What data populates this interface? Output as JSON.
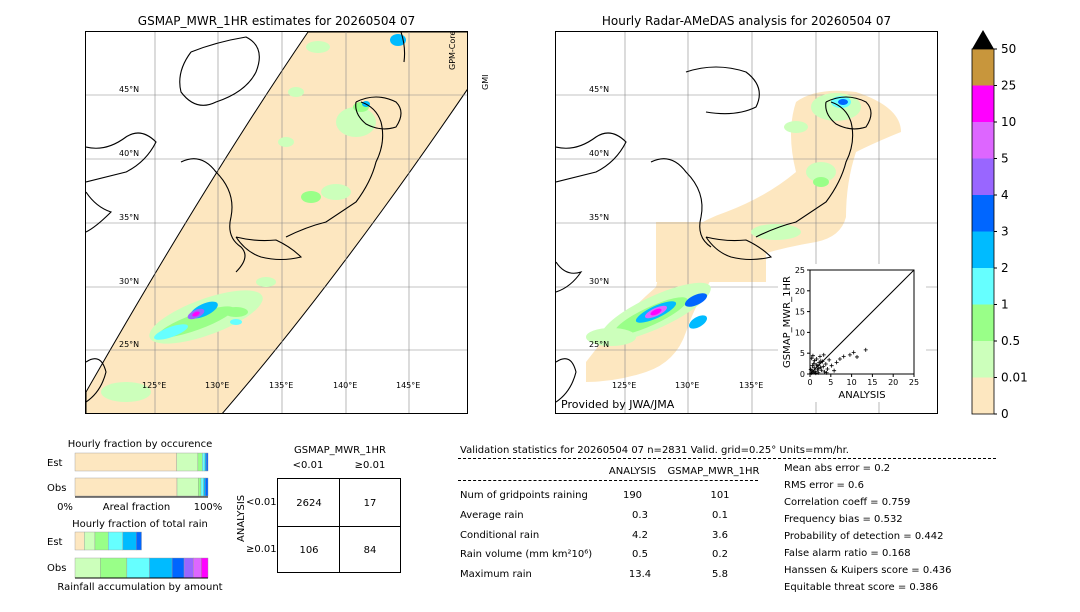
{
  "left_map": {
    "title": "GSMAP_MWR_1HR estimates for 20260504 07",
    "sensor_label_1": "GPM-Core",
    "sensor_label_2": "GMI",
    "lat_labels": [
      "45°N",
      "40°N",
      "35°N",
      "30°N",
      "25°N"
    ],
    "lon_labels": [
      "125°E",
      "130°E",
      "135°E",
      "140°E",
      "145°E"
    ]
  },
  "right_map": {
    "title": "Hourly Radar-AMeDAS analysis for 20260504 07",
    "lat_labels": [
      "45°N",
      "40°N",
      "35°N",
      "30°N",
      "25°N"
    ],
    "lon_labels": [
      "125°E",
      "130°E",
      "135°E"
    ],
    "credit": "Provided by JWA/JMA"
  },
  "colorbar": {
    "labels": [
      "50",
      "25",
      "10",
      "5",
      "4",
      "3",
      "2",
      "1",
      "0.5",
      "0.01",
      "0"
    ],
    "colors": [
      "#c8963c",
      "#ff00ff",
      "#dd66ff",
      "#9966ff",
      "#0066ff",
      "#00bbff",
      "#66ffff",
      "#99ff88",
      "#ccffbb",
      "#fde7c0"
    ],
    "over_color": "#000000"
  },
  "chart_data": [
    {
      "type": "scatter",
      "title": "",
      "xlabel": "ANALYSIS",
      "ylabel": "GSMAP_MWR_1HR",
      "xlim": [
        0,
        25
      ],
      "ylim": [
        0,
        25
      ],
      "xticks": [
        "0",
        "5",
        "10",
        "15",
        "20",
        "25"
      ],
      "yticks": [
        "0",
        "5",
        "10",
        "15",
        "20",
        "25"
      ],
      "points": [
        [
          0.3,
          0.2
        ],
        [
          0.5,
          0.8
        ],
        [
          0.8,
          0.4
        ],
        [
          1.0,
          1.5
        ],
        [
          1.2,
          0.6
        ],
        [
          1.5,
          2.2
        ],
        [
          1.8,
          1.0
        ],
        [
          2.0,
          0.3
        ],
        [
          2.2,
          2.8
        ],
        [
          2.5,
          1.6
        ],
        [
          2.8,
          0.9
        ],
        [
          3.0,
          3.0
        ],
        [
          3.2,
          1.8
        ],
        [
          3.5,
          0.5
        ],
        [
          0.6,
          2.0
        ],
        [
          1.1,
          3.2
        ],
        [
          0.4,
          3.8
        ],
        [
          1.6,
          3.6
        ],
        [
          2.4,
          4.2
        ],
        [
          3.8,
          2.4
        ],
        [
          4.2,
          1.2
        ],
        [
          4.6,
          3.4
        ],
        [
          5.2,
          2.0
        ],
        [
          5.8,
          0.8
        ],
        [
          6.4,
          2.8
        ],
        [
          7.2,
          3.6
        ],
        [
          8.1,
          4.2
        ],
        [
          9.6,
          4.6
        ],
        [
          10.5,
          5.2
        ],
        [
          11.3,
          4.1
        ],
        [
          13.4,
          5.8
        ],
        [
          0.2,
          1.1
        ],
        [
          0.9,
          2.5
        ],
        [
          1.4,
          0.2
        ],
        [
          2.6,
          3.1
        ],
        [
          3.3,
          4.6
        ],
        [
          0.7,
          4.4
        ],
        [
          1.9,
          2.0
        ],
        [
          2.1,
          1.3
        ],
        [
          4.0,
          0.3
        ]
      ]
    },
    {
      "type": "bar",
      "title": "Hourly fraction by occurence",
      "categories": [
        "Est",
        "Obs"
      ],
      "xlabel": "Areal fraction",
      "xtick_labels": [
        "0%",
        "100%"
      ],
      "series": [
        {
          "color": "#fde7c0",
          "values": [
            0.764,
            0.767
          ]
        },
        {
          "color": "#ccffbb",
          "values": [
            0.16,
            0.16
          ]
        },
        {
          "color": "#99ff88",
          "values": [
            0.033,
            0.02
          ]
        },
        {
          "color": "#66ffff",
          "values": [
            0.02,
            0.02
          ]
        },
        {
          "color": "#00bbff",
          "values": [
            0.01,
            0.013
          ]
        },
        {
          "color": "#0066ff",
          "values": [
            0.013,
            0.02
          ]
        }
      ]
    },
    {
      "type": "bar",
      "title": "Hourly fraction of total rain",
      "categories": [
        "Est",
        "Obs"
      ],
      "xlabel": "Rainfall accumulation by amount",
      "series": [
        {
          "color": "#fde7c0",
          "values": [
            0.07,
            0.0
          ]
        },
        {
          "color": "#ccffbb",
          "values": [
            0.08,
            0.19
          ]
        },
        {
          "color": "#99ff88",
          "values": [
            0.1,
            0.2
          ]
        },
        {
          "color": "#66ffff",
          "values": [
            0.11,
            0.17
          ]
        },
        {
          "color": "#00bbff",
          "values": [
            0.1,
            0.17
          ]
        },
        {
          "color": "#0066ff",
          "values": [
            0.04,
            0.09
          ]
        },
        {
          "color": "#9966ff",
          "values": [
            0.0,
            0.07
          ]
        },
        {
          "color": "#dd66ff",
          "values": [
            0.0,
            0.06
          ]
        },
        {
          "color": "#ff00ff",
          "values": [
            0.0,
            0.05
          ]
        }
      ]
    }
  ],
  "contingency": {
    "title": "GSMAP_MWR_1HR",
    "col_labels": [
      "<0.01",
      "≥0.01"
    ],
    "row_axis_label": "ANALYSIS",
    "row_labels": [
      "<0.01",
      "≥0.01"
    ],
    "cells": [
      [
        "2624",
        "17"
      ],
      [
        "106",
        "84"
      ]
    ]
  },
  "validation": {
    "header": "Validation statistics for 20260504 07  n=2831 Valid. grid=0.25° Units=mm/hr.",
    "col_analysis": "ANALYSIS",
    "col_gsmap": "GSMAP_MWR_1HR",
    "rows": [
      {
        "label": "Num of gridpoints raining",
        "analysis": "190",
        "gsmap": "101"
      },
      {
        "label": "Average rain",
        "analysis": "0.3",
        "gsmap": "0.1"
      },
      {
        "label": "Conditional rain",
        "analysis": "4.2",
        "gsmap": "3.6"
      },
      {
        "label": "Rain volume (mm km²10⁶)",
        "analysis": "0.5",
        "gsmap": "0.2"
      },
      {
        "label": "Maximum rain",
        "analysis": "13.4",
        "gsmap": "5.8"
      }
    ],
    "scores": [
      "Mean abs error =    0.2",
      "RMS error =    0.6",
      "Correlation coeff =  0.759",
      "Frequency bias =  0.532",
      "Probability of detection =  0.442",
      "False alarm ratio =  0.168",
      "Hanssen & Kuipers score =  0.436",
      "Equitable threat score =  0.386"
    ]
  }
}
